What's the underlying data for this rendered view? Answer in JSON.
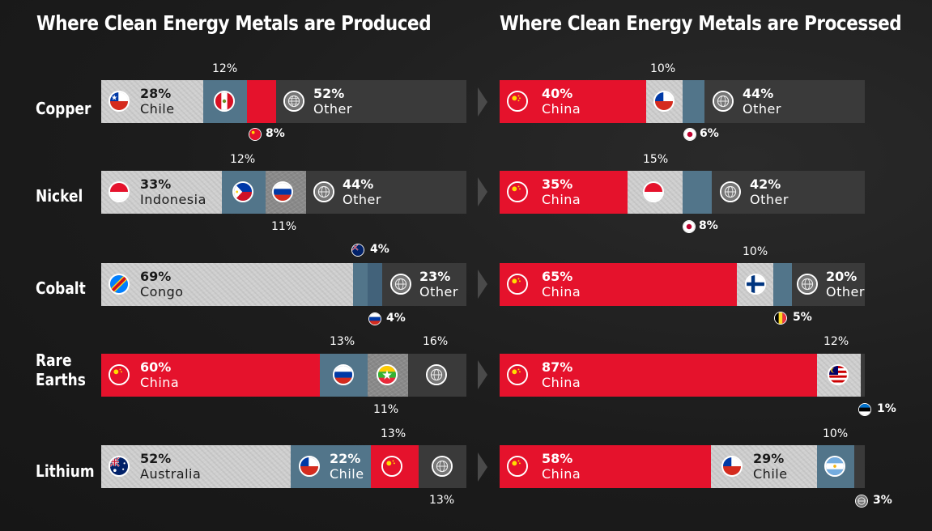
{
  "titles": {
    "produced": "Where Clean Energy Metals are Produced",
    "processed": "Where Clean Energy Metals are Processed"
  },
  "metals": {
    "copper": "Copper",
    "nickel": "Nickel",
    "cobalt": "Cobalt",
    "rare_earths_1": "Rare",
    "rare_earths_2": "Earths",
    "lithium": "Lithium"
  },
  "bars": {
    "copper_prod": {
      "p1": "28%",
      "n1": "Chile",
      "ext_top": "12%",
      "ext_bot": "8%",
      "p2": "52%",
      "n2": "Other"
    },
    "copper_proc": {
      "p1": "40%",
      "n1": "China",
      "ext_top": "10%",
      "ext_bot": "6%",
      "p2": "44%",
      "n2": "Other"
    },
    "nickel_prod": {
      "p1": "33%",
      "n1": "Indonesia",
      "ext_top": "12%",
      "ext_bot": "11%",
      "p2": "44%",
      "n2": "Other"
    },
    "nickel_proc": {
      "p1": "35%",
      "n1": "China",
      "ext_top": "15%",
      "ext_bot": "8%",
      "p2": "42%",
      "n2": "Other"
    },
    "cobalt_prod": {
      "p1": "69%",
      "n1": "Congo",
      "ext_top": "4%",
      "ext_bot": "4%",
      "p2": "23%",
      "n2": "Other"
    },
    "cobalt_proc": {
      "p1": "65%",
      "n1": "China",
      "ext_top": "10%",
      "ext_bot": "5%",
      "p2": "20%",
      "n2": "Other"
    },
    "re_prod": {
      "p1": "60%",
      "n1": "China",
      "ext_top1": "13%",
      "ext_top2": "16%",
      "ext_bot": "11%"
    },
    "re_proc": {
      "p1": "87%",
      "n1": "China",
      "ext_top": "12%",
      "ext_bot": "1%"
    },
    "li_prod": {
      "p1": "52%",
      "n1": "Australia",
      "p2": "22%",
      "n2": "Chile",
      "ext_top": "13%",
      "ext_bot": "13%"
    },
    "li_proc": {
      "p1": "58%",
      "n1": "China",
      "p2": "29%",
      "n2": "Chile",
      "ext_top": "10%",
      "ext_bot": "3%"
    }
  },
  "colors": {
    "china_red": "#e5122c",
    "blue": "#52758a",
    "gray": "#cfcfcf",
    "other": "#3a3a3a"
  },
  "chart_data": [
    {
      "type": "bar",
      "title": "Where Clean Energy Metals are Produced",
      "categories": [
        "Copper",
        "Nickel",
        "Cobalt",
        "Rare Earths",
        "Lithium"
      ],
      "rows": [
        {
          "metal": "Copper",
          "shares": [
            [
              "Chile",
              28
            ],
            [
              "Peru",
              12
            ],
            [
              "China",
              8
            ],
            [
              "Other",
              52
            ]
          ]
        },
        {
          "metal": "Nickel",
          "shares": [
            [
              "Indonesia",
              33
            ],
            [
              "Philippines",
              12
            ],
            [
              "Russia",
              11
            ],
            [
              "Other",
              44
            ]
          ]
        },
        {
          "metal": "Cobalt",
          "shares": [
            [
              "Congo",
              69
            ],
            [
              "Australia",
              4
            ],
            [
              "Russia",
              4
            ],
            [
              "Other",
              23
            ]
          ]
        },
        {
          "metal": "Rare Earths",
          "shares": [
            [
              "China",
              60
            ],
            [
              "Russia",
              13
            ],
            [
              "Myanmar",
              11
            ],
            [
              "Other",
              16
            ]
          ]
        },
        {
          "metal": "Lithium",
          "shares": [
            [
              "Australia",
              52
            ],
            [
              "Chile",
              22
            ],
            [
              "China",
              13
            ],
            [
              "Other",
              13
            ]
          ]
        }
      ]
    },
    {
      "type": "bar",
      "title": "Where Clean Energy Metals are Processed",
      "categories": [
        "Copper",
        "Nickel",
        "Cobalt",
        "Rare Earths",
        "Lithium"
      ],
      "rows": [
        {
          "metal": "Copper",
          "shares": [
            [
              "China",
              40
            ],
            [
              "Chile",
              10
            ],
            [
              "Japan",
              6
            ],
            [
              "Other",
              44
            ]
          ]
        },
        {
          "metal": "Nickel",
          "shares": [
            [
              "China",
              35
            ],
            [
              "Indonesia",
              15
            ],
            [
              "Japan",
              8
            ],
            [
              "Other",
              42
            ]
          ]
        },
        {
          "metal": "Cobalt",
          "shares": [
            [
              "China",
              65
            ],
            [
              "Finland",
              10
            ],
            [
              "Belgium",
              5
            ],
            [
              "Other",
              20
            ]
          ]
        },
        {
          "metal": "Rare Earths",
          "shares": [
            [
              "China",
              87
            ],
            [
              "Malaysia",
              12
            ],
            [
              "Estonia",
              1
            ]
          ]
        },
        {
          "metal": "Lithium",
          "shares": [
            [
              "China",
              58
            ],
            [
              "Chile",
              29
            ],
            [
              "Argentina",
              10
            ],
            [
              "Other",
              3
            ]
          ]
        }
      ]
    }
  ]
}
